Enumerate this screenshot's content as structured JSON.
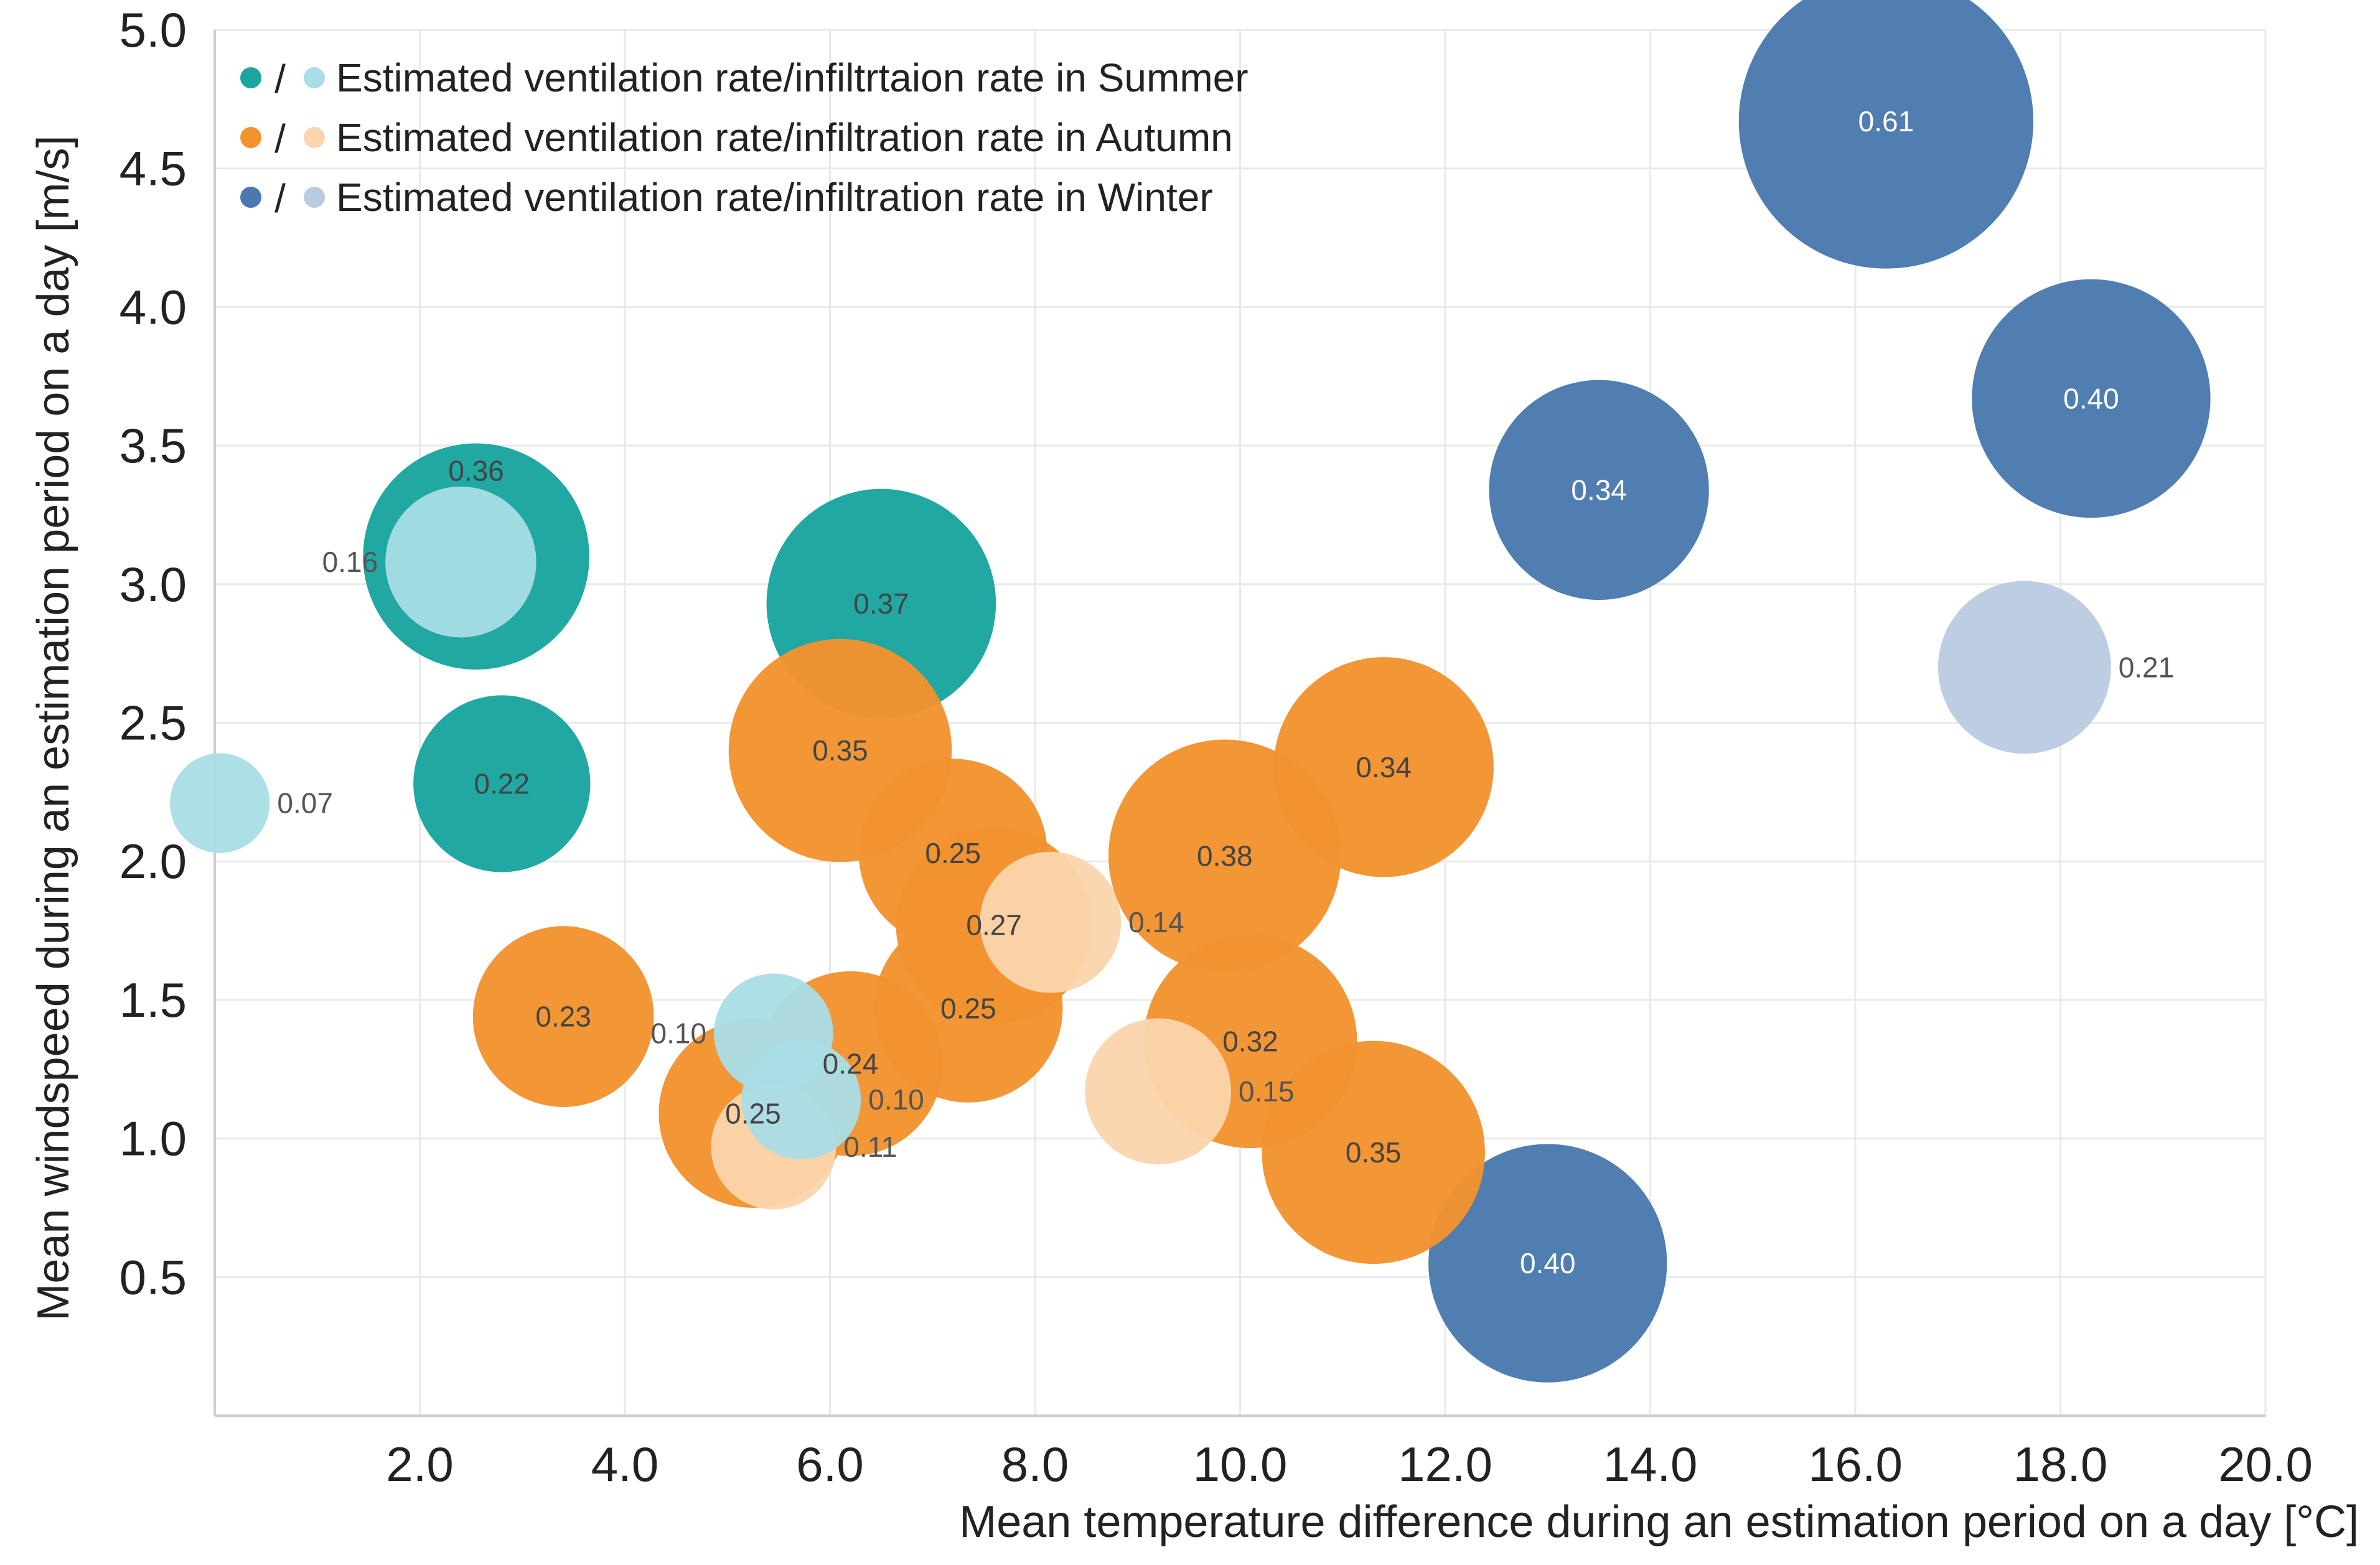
{
  "chart_data": {
    "type": "scatter",
    "xlabel": "Mean temperature difference during an estimation period on a day [°C]",
    "ylabel": "Mean windspeed during an estimation period on a day [m/s]",
    "xlim": [
      0,
      20
    ],
    "ylim": [
      0,
      5
    ],
    "x_ticks": [
      "2.0",
      "4.0",
      "6.0",
      "8.0",
      "10.0",
      "12.0",
      "14.0",
      "16.0",
      "18.0",
      "20.0"
    ],
    "y_ticks": [
      "0.5",
      "1.0",
      "1.5",
      "2.0",
      "2.5",
      "3.0",
      "3.5",
      "4.0",
      "4.5",
      "5.0"
    ],
    "grid": true,
    "legend_position": "top-left",
    "bubble_size_meaning": "label value",
    "legend": [
      {
        "label": "Estimated ventilation rate/infiltrtaion rate in Summer",
        "color_dark": "#1aa5a0",
        "color_light": "#a9dde6"
      },
      {
        "label": "Estimated ventilation rate/infiltration rate in Autumn",
        "color_dark": "#f29330",
        "color_light": "#fad5ad"
      },
      {
        "label": "Estimated ventilation rate/infiltration rate in Winter",
        "color_dark": "#4a7aad",
        "color_light": "#b9cbe0"
      }
    ],
    "series": [
      {
        "season": "Summer",
        "kind": "ventilation",
        "color": "#1aa5a0",
        "points": [
          {
            "x": 2.55,
            "y": 3.1,
            "value": 0.36,
            "label": "0.36",
            "label_pos": "top"
          },
          {
            "x": 2.8,
            "y": 2.28,
            "value": 0.22,
            "label": "0.22",
            "label_pos": "center"
          },
          {
            "x": 6.5,
            "y": 2.93,
            "value": 0.37,
            "label": "0.37",
            "label_pos": "center"
          }
        ]
      },
      {
        "season": "Summer",
        "kind": "infiltration",
        "color": "#a9dde6",
        "points": [
          {
            "x": 2.4,
            "y": 3.08,
            "value": 0.16,
            "label": "0.16",
            "label_pos": "left"
          },
          {
            "x": 0.05,
            "y": 2.21,
            "value": 0.07,
            "label": "0.07",
            "label_pos": "right"
          },
          {
            "x": 5.45,
            "y": 1.38,
            "value": 0.1,
            "label": "0.10",
            "label_pos": "left"
          },
          {
            "x": 5.72,
            "y": 1.14,
            "value": 0.1,
            "label": "0.10",
            "label_pos": "right"
          }
        ]
      },
      {
        "season": "Autumn",
        "kind": "ventilation",
        "color": "#f29330",
        "points": [
          {
            "x": 6.1,
            "y": 2.4,
            "value": 0.35,
            "label": "0.35",
            "label_pos": "center"
          },
          {
            "x": 7.2,
            "y": 2.03,
            "value": 0.25,
            "label": "0.25",
            "label_pos": "center"
          },
          {
            "x": 7.6,
            "y": 1.77,
            "value": 0.27,
            "label": "0.27",
            "label_pos": "center"
          },
          {
            "x": 7.35,
            "y": 1.47,
            "value": 0.25,
            "label": "0.25",
            "label_pos": "center"
          },
          {
            "x": 6.2,
            "y": 1.27,
            "value": 0.24,
            "label": "0.24",
            "label_pos": "center"
          },
          {
            "x": 5.25,
            "y": 1.09,
            "value": 0.25,
            "label": "0.25",
            "label_pos": "center"
          },
          {
            "x": 3.4,
            "y": 1.44,
            "value": 0.23,
            "label": "0.23",
            "label_pos": "center"
          },
          {
            "x": 9.85,
            "y": 2.02,
            "value": 0.38,
            "label": "0.38",
            "label_pos": "center"
          },
          {
            "x": 11.4,
            "y": 2.34,
            "value": 0.34,
            "label": "0.34",
            "label_pos": "center"
          },
          {
            "x": 10.1,
            "y": 1.35,
            "value": 0.32,
            "label": "0.32",
            "label_pos": "center"
          },
          {
            "x": 11.3,
            "y": 0.95,
            "value": 0.35,
            "label": "0.35",
            "label_pos": "center"
          }
        ]
      },
      {
        "season": "Autumn",
        "kind": "infiltration",
        "color": "#fad5ad",
        "points": [
          {
            "x": 8.15,
            "y": 1.78,
            "value": 0.14,
            "label": "0.14",
            "label_pos": "right"
          },
          {
            "x": 9.2,
            "y": 1.17,
            "value": 0.15,
            "label": "0.15",
            "label_pos": "right"
          },
          {
            "x": 5.45,
            "y": 0.97,
            "value": 0.11,
            "label": "0.11",
            "label_pos": "right"
          }
        ]
      },
      {
        "season": "Winter",
        "kind": "ventilation",
        "color": "#4a7aad",
        "points": [
          {
            "x": 16.3,
            "y": 4.67,
            "value": 0.61,
            "label": "0.61",
            "label_pos": "center"
          },
          {
            "x": 18.3,
            "y": 3.67,
            "value": 0.4,
            "label": "0.40",
            "label_pos": "center"
          },
          {
            "x": 13.5,
            "y": 3.34,
            "value": 0.34,
            "label": "0.34",
            "label_pos": "center"
          },
          {
            "x": 13.0,
            "y": 0.55,
            "value": 0.4,
            "label": "0.40",
            "label_pos": "center"
          }
        ]
      },
      {
        "season": "Winter",
        "kind": "infiltration",
        "color": "#b9cbe0",
        "points": [
          {
            "x": 17.65,
            "y": 2.7,
            "value": 0.21,
            "label": "0.21",
            "label_pos": "right"
          }
        ]
      }
    ]
  }
}
